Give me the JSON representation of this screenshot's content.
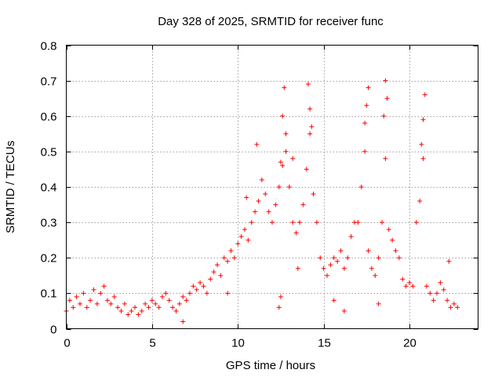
{
  "chart_data": {
    "type": "scatter",
    "title": "Day 328 of 2025, SRMTID for receiver func",
    "xlabel": "GPS time / hours",
    "ylabel": "SRMTID / TECUs",
    "xlim": [
      0,
      24
    ],
    "ylim": [
      0,
      0.8
    ],
    "xticks": [
      0,
      5,
      10,
      15,
      20
    ],
    "yticks": [
      0,
      0.1,
      0.2,
      0.3,
      0.4,
      0.5,
      0.6,
      0.7,
      0.8
    ],
    "xtick_labels": [
      "0",
      "5",
      "10",
      "15",
      "20"
    ],
    "ytick_labels": [
      "0",
      "0.1",
      "0.2",
      "0.3",
      "0.4",
      "0.5",
      "0.6",
      "0.7",
      "0.8"
    ],
    "grid": true,
    "marker": "+",
    "color": "#ff0000",
    "series": [
      {
        "name": "SRMTID",
        "points": [
          [
            0.0,
            0.05
          ],
          [
            0.2,
            0.08
          ],
          [
            0.4,
            0.06
          ],
          [
            0.6,
            0.09
          ],
          [
            0.8,
            0.07
          ],
          [
            1.0,
            0.1
          ],
          [
            1.2,
            0.06
          ],
          [
            1.4,
            0.08
          ],
          [
            1.6,
            0.11
          ],
          [
            1.8,
            0.07
          ],
          [
            2.0,
            0.1
          ],
          [
            2.2,
            0.12
          ],
          [
            2.4,
            0.08
          ],
          [
            2.6,
            0.07
          ],
          [
            2.8,
            0.09
          ],
          [
            3.0,
            0.06
          ],
          [
            3.2,
            0.05
          ],
          [
            3.4,
            0.07
          ],
          [
            3.6,
            0.04
          ],
          [
            3.8,
            0.05
          ],
          [
            4.0,
            0.06
          ],
          [
            4.2,
            0.04
          ],
          [
            4.4,
            0.05
          ],
          [
            4.6,
            0.07
          ],
          [
            4.8,
            0.06
          ],
          [
            5.0,
            0.08
          ],
          [
            5.2,
            0.07
          ],
          [
            5.4,
            0.06
          ],
          [
            5.6,
            0.09
          ],
          [
            5.8,
            0.1
          ],
          [
            6.0,
            0.08
          ],
          [
            6.2,
            0.06
          ],
          [
            6.4,
            0.05
          ],
          [
            6.6,
            0.07
          ],
          [
            6.8,
            0.09
          ],
          [
            7.0,
            0.08
          ],
          [
            7.2,
            0.1
          ],
          [
            7.4,
            0.12
          ],
          [
            7.6,
            0.11
          ],
          [
            7.8,
            0.13
          ],
          [
            8.0,
            0.12
          ],
          [
            8.2,
            0.1
          ],
          [
            8.4,
            0.14
          ],
          [
            8.6,
            0.16
          ],
          [
            8.8,
            0.18
          ],
          [
            9.0,
            0.15
          ],
          [
            9.2,
            0.2
          ],
          [
            9.4,
            0.19
          ],
          [
            9.6,
            0.22
          ],
          [
            9.8,
            0.2
          ],
          [
            10.0,
            0.24
          ],
          [
            10.2,
            0.26
          ],
          [
            10.4,
            0.28
          ],
          [
            10.6,
            0.25
          ],
          [
            10.8,
            0.3
          ],
          [
            11.0,
            0.33
          ],
          [
            11.2,
            0.36
          ],
          [
            11.4,
            0.42
          ],
          [
            11.6,
            0.38
          ],
          [
            11.8,
            0.33
          ],
          [
            12.0,
            0.3
          ],
          [
            12.2,
            0.35
          ],
          [
            12.4,
            0.4
          ],
          [
            12.6,
            0.46
          ],
          [
            12.8,
            0.55
          ],
          [
            13.0,
            0.4
          ],
          [
            13.2,
            0.3
          ],
          [
            13.4,
            0.27
          ],
          [
            13.6,
            0.3
          ],
          [
            13.8,
            0.35
          ],
          [
            14.0,
            0.45
          ],
          [
            14.2,
            0.55
          ],
          [
            14.4,
            0.38
          ],
          [
            14.6,
            0.3
          ],
          [
            14.8,
            0.2
          ],
          [
            15.0,
            0.17
          ],
          [
            15.2,
            0.15
          ],
          [
            15.4,
            0.18
          ],
          [
            15.6,
            0.2
          ],
          [
            15.8,
            0.19
          ],
          [
            16.0,
            0.22
          ],
          [
            16.2,
            0.17
          ],
          [
            16.4,
            0.2
          ],
          [
            16.6,
            0.26
          ],
          [
            16.8,
            0.3
          ],
          [
            17.0,
            0.3
          ],
          [
            17.2,
            0.4
          ],
          [
            17.4,
            0.5
          ],
          [
            17.6,
            0.22
          ],
          [
            17.8,
            0.17
          ],
          [
            18.0,
            0.15
          ],
          [
            18.2,
            0.2
          ],
          [
            18.4,
            0.3
          ],
          [
            18.6,
            0.48
          ],
          [
            18.8,
            0.28
          ],
          [
            19.0,
            0.25
          ],
          [
            19.2,
            0.22
          ],
          [
            19.4,
            0.2
          ],
          [
            19.6,
            0.14
          ],
          [
            19.8,
            0.12
          ],
          [
            20.0,
            0.13
          ],
          [
            20.2,
            0.12
          ],
          [
            20.4,
            0.3
          ],
          [
            20.6,
            0.36
          ],
          [
            20.8,
            0.48
          ],
          [
            21.0,
            0.12
          ],
          [
            21.2,
            0.1
          ],
          [
            21.4,
            0.08
          ],
          [
            21.6,
            0.1
          ],
          [
            21.8,
            0.13
          ],
          [
            22.0,
            0.11
          ],
          [
            22.2,
            0.08
          ],
          [
            22.4,
            0.06
          ],
          [
            22.6,
            0.07
          ],
          [
            22.8,
            0.06
          ],
          [
            12.7,
            0.68
          ],
          [
            12.6,
            0.6
          ],
          [
            12.8,
            0.5
          ],
          [
            14.1,
            0.69
          ],
          [
            14.2,
            0.62
          ],
          [
            14.3,
            0.57
          ],
          [
            17.6,
            0.68
          ],
          [
            17.5,
            0.63
          ],
          [
            17.4,
            0.58
          ],
          [
            18.6,
            0.7
          ],
          [
            18.7,
            0.65
          ],
          [
            18.5,
            0.6
          ],
          [
            20.9,
            0.66
          ],
          [
            20.8,
            0.59
          ],
          [
            20.7,
            0.52
          ],
          [
            11.1,
            0.52
          ],
          [
            12.5,
            0.47
          ],
          [
            13.2,
            0.48
          ],
          [
            12.4,
            0.06
          ],
          [
            12.5,
            0.09
          ],
          [
            22.3,
            0.19
          ],
          [
            6.8,
            0.02
          ],
          [
            9.4,
            0.1
          ],
          [
            16.2,
            0.05
          ],
          [
            15.6,
            0.08
          ],
          [
            18.2,
            0.07
          ],
          [
            13.5,
            0.17
          ],
          [
            10.5,
            0.37
          ]
        ]
      }
    ]
  }
}
